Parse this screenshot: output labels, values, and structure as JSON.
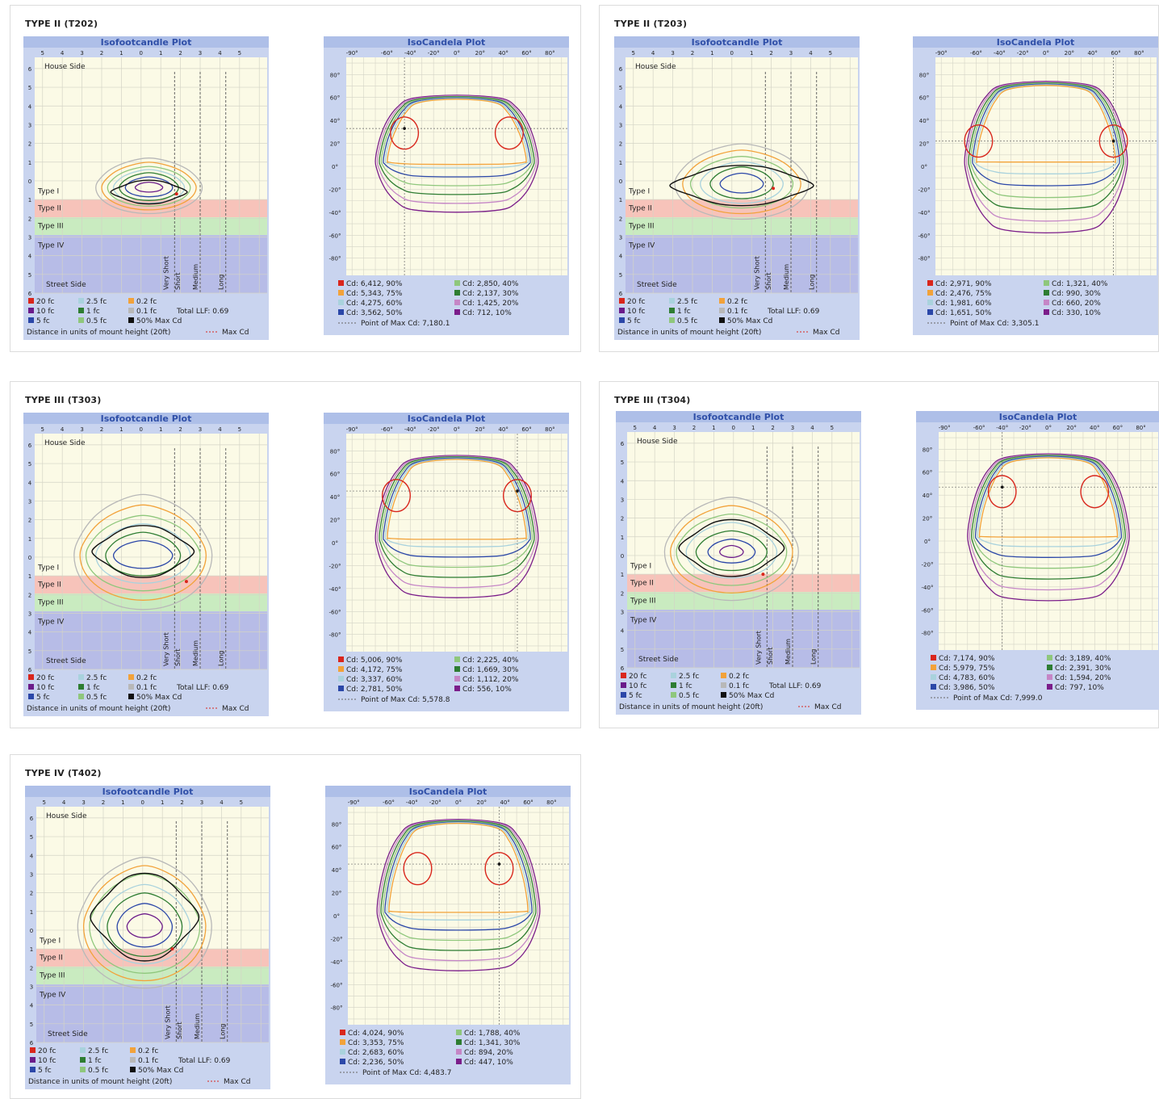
{
  "colors": {
    "panel_header": "#aebfe8",
    "plot_bg": "#fbfae6",
    "grid": "#d4d4c6",
    "title_text": "#2f4fa8",
    "type2_band": "#f6b9b2",
    "type3_band": "#bfe7b8",
    "type4_band": "#aab0e6",
    "level_90": "#d9261c",
    "level_75": "#f2a23a",
    "level_60": "#a9d2dd",
    "level_50": "#2b47a8",
    "level_40": "#8fc77c",
    "level_30": "#2e7d32",
    "level_20": "#c586c6",
    "level_10": "#7b1d8a",
    "fc_20": "#d9261c",
    "fc_10": "#6b1b8a",
    "fc_5": "#2b47a8",
    "fc_2_5": "#a9d2dd",
    "fc_1": "#2e7d32",
    "fc_0_5": "#8fc77c",
    "fc_0_2": "#f2a23a",
    "fc_0_1": "#b8b8b8",
    "fc_50max": "#111111"
  },
  "iso_common": {
    "title": "Isofootcandle Plot",
    "x_ticks": [
      "5",
      "4",
      "3",
      "2",
      "1",
      "0",
      "1",
      "2",
      "3",
      "4",
      "5"
    ],
    "y_ticks": [
      "6",
      "5",
      "4",
      "3",
      "2",
      "1",
      "0",
      "1",
      "2",
      "3",
      "4",
      "5",
      "6"
    ],
    "house_side": "House Side",
    "street_side": "Street Side",
    "band_type1": "Type I",
    "band_type2": "Type II",
    "band_type3": "Type III",
    "band_type4": "Type IV",
    "vlines": [
      "Very Short",
      "Short",
      "Medium",
      "Long"
    ],
    "legend": [
      [
        "20 fc",
        "2.5 fc",
        "0.2 fc"
      ],
      [
        "10 fc",
        "1 fc",
        "0.1 fc"
      ],
      [
        "5 fc",
        "0.5 fc",
        "50% Max Cd"
      ]
    ],
    "total_llf": "Total LLF: 0.69",
    "distance_note": "Distance in units of mount height (20ft)",
    "max_cd_note": "Max Cd"
  },
  "cd_common": {
    "title": "IsoCandela Plot",
    "x_ticks": [
      "-90°",
      "-60°",
      "-40°",
      "-20°",
      "0°",
      "20°",
      "40°",
      "60°",
      "80°"
    ],
    "y_ticks": [
      "80°",
      "60°",
      "40°",
      "20°",
      "0°",
      "-20°",
      "-40°",
      "-60°",
      "-80°"
    ]
  },
  "chart_data": [
    {
      "type": "line",
      "title": "TYPE II (T202)",
      "isofootcandle_levels_fc": [
        20,
        10,
        5,
        2.5,
        1,
        0.5,
        0.2,
        0.1
      ],
      "isocandela": {
        "title": "IsoCandela Plot",
        "levels": [
          {
            "label": "Cd: 6,412, 90%",
            "cd": 6412,
            "pct": 90
          },
          {
            "label": "Cd: 5,343, 75%",
            "cd": 5343,
            "pct": 75
          },
          {
            "label": "Cd: 4,275, 60%",
            "cd": 4275,
            "pct": 60
          },
          {
            "label": "Cd: 3,562, 50%",
            "cd": 3562,
            "pct": 50
          },
          {
            "label": "Cd: 2,850, 40%",
            "cd": 2850,
            "pct": 40
          },
          {
            "label": "Cd: 2,137, 30%",
            "cd": 2137,
            "pct": 30
          },
          {
            "label": "Cd: 1,425, 20%",
            "cd": 1425,
            "pct": 20
          },
          {
            "label": "Cd: 712, 10%",
            "cd": 712,
            "pct": 10
          }
        ],
        "max_label": "Point of Max Cd: 7,180.1",
        "max_cd": 7180.1,
        "max_point_deg": [
          -45,
          33
        ]
      }
    },
    {
      "type": "line",
      "title": "TYPE II (T203)",
      "isofootcandle_levels_fc": [
        20,
        10,
        5,
        2.5,
        1,
        0.5,
        0.2,
        0.1
      ],
      "isocandela": {
        "title": "IsoCandela Plot",
        "levels": [
          {
            "label": "Cd: 2,971, 90%",
            "cd": 2971,
            "pct": 90
          },
          {
            "label": "Cd: 2,476, 75%",
            "cd": 2476,
            "pct": 75
          },
          {
            "label": "Cd: 1,981, 60%",
            "cd": 1981,
            "pct": 60
          },
          {
            "label": "Cd: 1,651, 50%",
            "cd": 1651,
            "pct": 50
          },
          {
            "label": "Cd: 1,321, 40%",
            "cd": 1321,
            "pct": 40
          },
          {
            "label": "Cd: 990, 30%",
            "cd": 990,
            "pct": 30
          },
          {
            "label": "Cd: 660, 20%",
            "cd": 660,
            "pct": 20
          },
          {
            "label": "Cd: 330, 10%",
            "cd": 330,
            "pct": 10
          }
        ],
        "max_label": "Point of Max Cd: 3,305.1",
        "max_cd": 3305.1,
        "max_point_deg": [
          58,
          22
        ]
      }
    },
    {
      "type": "line",
      "title": "TYPE III (T303)",
      "isofootcandle_levels_fc": [
        20,
        10,
        5,
        2.5,
        1,
        0.5,
        0.2,
        0.1
      ],
      "isocandela": {
        "title": "IsoCandela Plot",
        "levels": [
          {
            "label": "Cd: 5,006, 90%",
            "cd": 5006,
            "pct": 90
          },
          {
            "label": "Cd: 4,172, 75%",
            "cd": 4172,
            "pct": 75
          },
          {
            "label": "Cd: 3,337, 60%",
            "cd": 3337,
            "pct": 60
          },
          {
            "label": "Cd: 2,781, 50%",
            "cd": 2781,
            "pct": 50
          },
          {
            "label": "Cd: 2,225, 40%",
            "cd": 2225,
            "pct": 40
          },
          {
            "label": "Cd: 1,669, 30%",
            "cd": 1669,
            "pct": 30
          },
          {
            "label": "Cd: 1,112, 20%",
            "cd": 1112,
            "pct": 20
          },
          {
            "label": "Cd: 556, 10%",
            "cd": 556,
            "pct": 10
          }
        ],
        "max_label": "Point of Max Cd: 5,578.8",
        "max_cd": 5578.8,
        "max_point_deg": [
          52,
          45
        ]
      }
    },
    {
      "type": "line",
      "title": "TYPE III (T304)",
      "isofootcandle_levels_fc": [
        20,
        10,
        5,
        2.5,
        1,
        0.5,
        0.2,
        0.1
      ],
      "isocandela": {
        "title": "IsoCandela Plot",
        "levels": [
          {
            "label": "Cd: 7,174, 90%",
            "cd": 7174,
            "pct": 90
          },
          {
            "label": "Cd: 5,979, 75%",
            "cd": 5979,
            "pct": 75
          },
          {
            "label": "Cd: 4,783, 60%",
            "cd": 4783,
            "pct": 60
          },
          {
            "label": "Cd: 3,986, 50%",
            "cd": 3986,
            "pct": 50
          },
          {
            "label": "Cd: 3,189, 40%",
            "cd": 3189,
            "pct": 40
          },
          {
            "label": "Cd: 2,391, 30%",
            "cd": 2391,
            "pct": 30
          },
          {
            "label": "Cd: 1,594, 20%",
            "cd": 1594,
            "pct": 20
          },
          {
            "label": "Cd: 797, 10%",
            "cd": 797,
            "pct": 10
          }
        ],
        "max_label": "Point of Max Cd: 7,999.0",
        "max_cd": 7999.0,
        "max_point_deg": [
          -40,
          47
        ]
      }
    },
    {
      "type": "line",
      "title": "TYPE IV (T402)",
      "isofootcandle_levels_fc": [
        20,
        10,
        5,
        2.5,
        1,
        0.5,
        0.2,
        0.1
      ],
      "isocandela": {
        "title": "IsoCandela Plot",
        "levels": [
          {
            "label": "Cd: 4,024, 90%",
            "cd": 4024,
            "pct": 90
          },
          {
            "label": "Cd: 3,353, 75%",
            "cd": 3353,
            "pct": 75
          },
          {
            "label": "Cd: 2,683, 60%",
            "cd": 2683,
            "pct": 60
          },
          {
            "label": "Cd: 2,236, 50%",
            "cd": 2236,
            "pct": 50
          },
          {
            "label": "Cd: 1,788, 40%",
            "cd": 1788,
            "pct": 40
          },
          {
            "label": "Cd: 1,341, 30%",
            "cd": 1341,
            "pct": 30
          },
          {
            "label": "Cd: 894, 20%",
            "cd": 894,
            "pct": 20
          },
          {
            "label": "Cd: 447, 10%",
            "cd": 447,
            "pct": 10
          }
        ],
        "max_label": "Point of Max Cd: 4,483.7",
        "max_cd": 4483.7,
        "max_point_deg": [
          35,
          45
        ]
      }
    }
  ]
}
